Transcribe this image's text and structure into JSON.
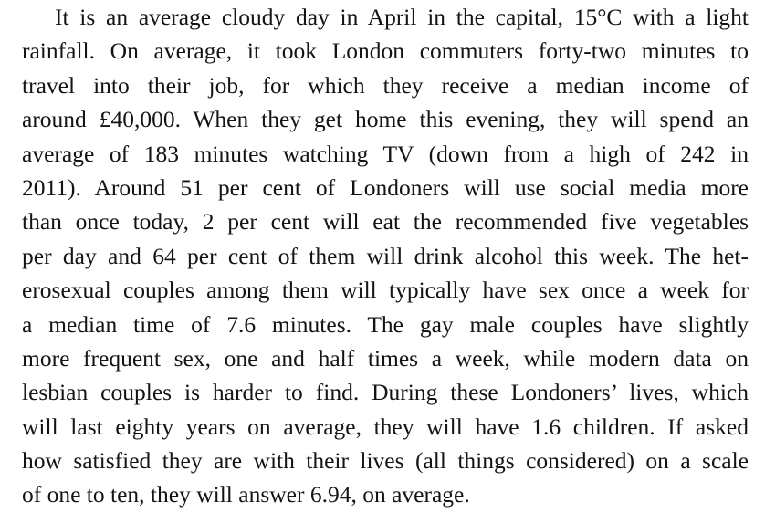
{
  "document": {
    "lines": [
      "It is an average cloudy day in April in the capital, 15°C with a light",
      "rainfall. On average, it took London commuters forty-two minutes to",
      "travel into their job, for which they receive a median income of",
      "around £40,000. When they get home this evening, they will spend an",
      "average of 183 minutes watching TV (down from a high of 242 in",
      "2011). Around 51 per cent of Londoners will use social media more",
      "than once today, 2 per cent will eat the recommended five vegetables",
      "per day and 64 per cent of them will drink alcohol this week. The het-",
      "erosexual couples among them will typically have sex once a week for",
      "a median time of 7.6 minutes. The gay male couples have slightly",
      "more frequent sex, one and half times a week, while modern data on",
      "lesbian couples is harder to find. During these Londoners’ lives, which",
      "will last eighty years on average, they will have 1.6 children. If asked",
      "how satisfied they are with their lives (all things considered) on a scale",
      "of one to ten, they will answer 6.94, on average."
    ]
  }
}
